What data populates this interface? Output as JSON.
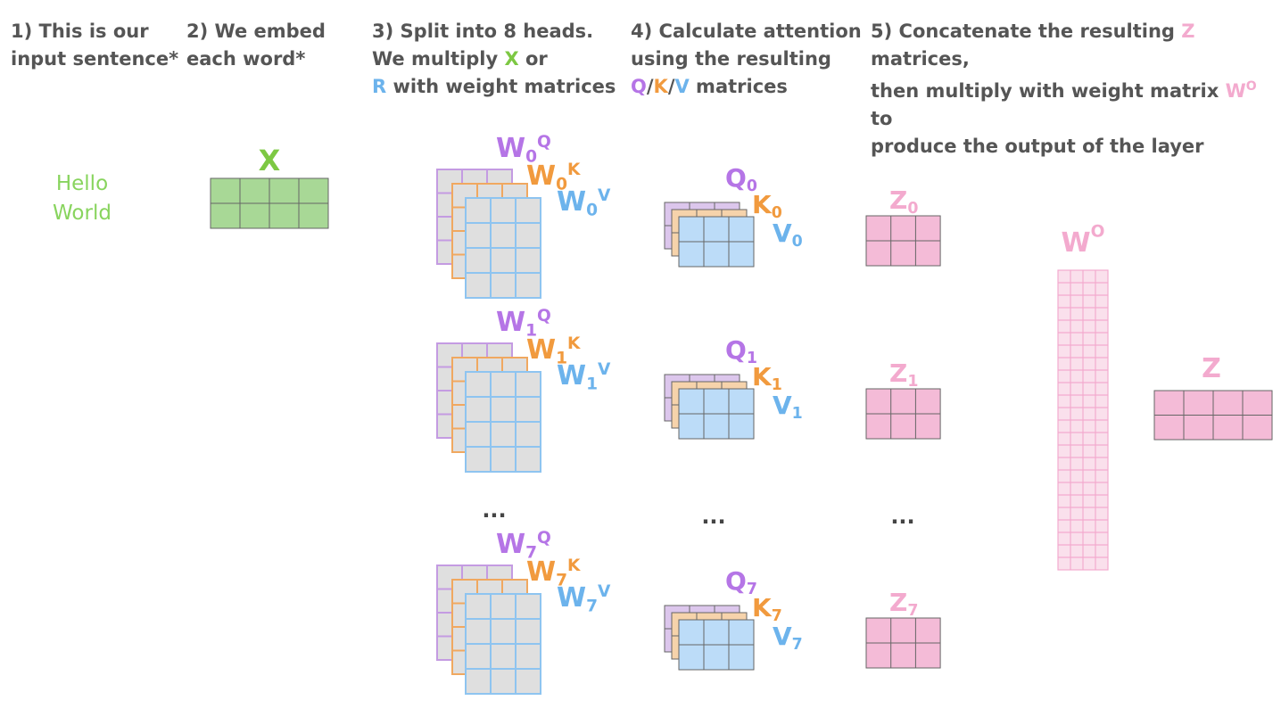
{
  "steps": [
    {
      "num": "1)",
      "line1": "This is our",
      "line2": "input sentence*"
    },
    {
      "num": "2)",
      "line1": "We embed",
      "line2": "each word*"
    },
    {
      "num": "3)",
      "line1a": "Split into 8 heads.",
      "line2a": "We multiply ",
      "x_var": "X",
      "line2b": " or",
      "r_var": "R",
      "line3b": " with weight matrices"
    },
    {
      "num": "4)",
      "line1": "Calculate attention",
      "line2": "using the resulting",
      "q": "Q",
      "sep": "/",
      "k": "K",
      "v": "V",
      "line3b": " matrices"
    },
    {
      "num": "5)",
      "line1a": "Concatenate the resulting ",
      "z_var": "Z",
      "line1b": " matrices,",
      "line2a": "then multiply with weight matrix ",
      "wo_base": "W",
      "wo_sup": "O",
      "line2b": " to",
      "line3": "produce the output of the layer"
    }
  ],
  "input_words": [
    "Hello",
    "World"
  ],
  "x_label": "X",
  "heads": [
    {
      "w": "W",
      "sub": "0",
      "q": "Q",
      "k": "K",
      "v": "V"
    },
    {
      "w": "W",
      "sub": "1",
      "q": "Q",
      "k": "K",
      "v": "V"
    },
    {
      "w": "W",
      "sub": "7",
      "q": "Q",
      "k": "K",
      "v": "V"
    }
  ],
  "qkv": [
    {
      "q": "Q",
      "k": "K",
      "v": "V",
      "sub": "0"
    },
    {
      "q": "Q",
      "k": "K",
      "v": "V",
      "sub": "1"
    },
    {
      "q": "Q",
      "k": "K",
      "v": "V",
      "sub": "7"
    }
  ],
  "z_heads": [
    {
      "z": "Z",
      "sub": "0"
    },
    {
      "z": "Z",
      "sub": "1"
    },
    {
      "z": "Z",
      "sub": "7"
    }
  ],
  "ellipsis": "...",
  "wo": {
    "base": "W",
    "sup": "O"
  },
  "z_out": "Z",
  "colors": {
    "green_fill": "#a8d896",
    "green_text": "#7dc843",
    "purple_fill": "#dcc6ec",
    "purple_stroke": "#c49be2",
    "purple_text": "#b575e6",
    "orange_fill": "#f6d3ab",
    "orange_stroke": "#f0a860",
    "orange_text": "#f19a3e",
    "grey_fill": "#dfdfdf",
    "blue_stroke": "#8ec4f0",
    "blue_fill": "#bcdcf8",
    "blue_text": "#6cb3ec",
    "pink_fill": "#f4bbd7",
    "pink_text": "#f3aace",
    "grid_stroke": "#666666"
  }
}
